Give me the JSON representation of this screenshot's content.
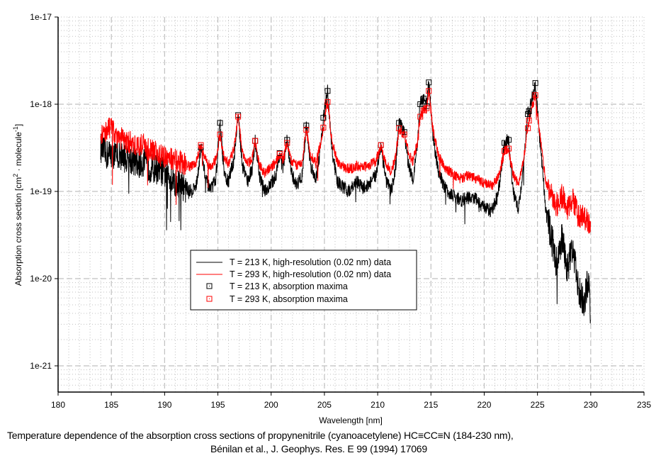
{
  "chart_data": {
    "type": "line",
    "title": "",
    "xlabel": "Wavelength [nm]",
    "ylabel": "Absorption cross section [cm² · molecule⁻¹]",
    "ylabel_parts": {
      "main": "Absorption cross section [cm",
      "sup1": "2",
      "mid": " · molecule",
      "sup2": "-1",
      "end": "]"
    },
    "xlim": [
      180,
      235
    ],
    "ylim": [
      5e-22,
      1e-17
    ],
    "yscale": "log",
    "x_ticks": [
      "180",
      "185",
      "190",
      "195",
      "200",
      "205",
      "210",
      "215",
      "220",
      "225",
      "230",
      "235"
    ],
    "x_tick_values": [
      180,
      185,
      190,
      195,
      200,
      205,
      210,
      215,
      220,
      225,
      230,
      235
    ],
    "y_ticks": [
      "1e-17",
      "1e-18",
      "1e-19",
      "1e-20",
      "1e-21"
    ],
    "y_tick_values": [
      1e-17,
      1e-18,
      1e-19,
      1e-20,
      1e-21
    ],
    "grid": true,
    "legend_position": "center-left",
    "legend": [
      {
        "label": "T = 213 K, high-resolution (0.02 nm) data",
        "kind": "line",
        "color": "#000000"
      },
      {
        "label": "T = 293 K, high-resolution (0.02 nm) data",
        "kind": "line",
        "color": "#ff0000"
      },
      {
        "label": "T = 213 K, absorption maxima",
        "kind": "marker",
        "color": "#000000"
      },
      {
        "label": "T = 293 K, absorption maxima",
        "kind": "marker",
        "color": "#ff0000"
      }
    ],
    "series": [
      {
        "name": "T = 213 K, high-resolution (0.02 nm) data",
        "kind": "line",
        "color": "#000000",
        "range_nm": [
          184,
          230
        ],
        "envelope": {
          "x": [
            184.0,
            184.5,
            185.0,
            185.5,
            186.0,
            186.5,
            187.0,
            187.5,
            188.0,
            188.5,
            189.0,
            189.5,
            190.0,
            190.5,
            191.0,
            191.5,
            192.0,
            192.5,
            193.0,
            193.4,
            193.8,
            194.3,
            194.8,
            195.2,
            195.6,
            196.0,
            196.5,
            196.9,
            197.3,
            197.8,
            198.2,
            198.5,
            198.9,
            199.4,
            200.0,
            200.5,
            200.8,
            201.1,
            201.5,
            201.9,
            202.4,
            202.9,
            203.3,
            203.7,
            204.2,
            204.6,
            204.9,
            205.3,
            205.7,
            206.2,
            206.8,
            207.4,
            208.0,
            208.6,
            209.2,
            209.8,
            210.3,
            210.8,
            211.3,
            211.7,
            212.0,
            212.5,
            212.9,
            213.3,
            213.7,
            214.0,
            214.3,
            214.6,
            214.8,
            215.2,
            215.7,
            216.3,
            217.0,
            217.8,
            218.5,
            219.3,
            220.0,
            220.7,
            221.3,
            221.9,
            222.3,
            222.7,
            223.2,
            223.6,
            224.1,
            224.2,
            224.8,
            225.3,
            225.8,
            226.3,
            226.8,
            227.3,
            227.8,
            228.3,
            228.8,
            229.3,
            229.8,
            230.0
          ],
          "y": [
            3.2e-19,
            2.6e-19,
            2.8e-19,
            2.5e-19,
            2.6e-19,
            2.3e-19,
            2.3e-19,
            2e-19,
            2.2e-19,
            1.9e-19,
            1.8e-19,
            1.8e-19,
            1.6e-19,
            1.5e-19,
            1.3e-19,
            1.2e-19,
            1.1e-19,
            1e-19,
            1.2e-19,
            3.2e-19,
            1.5e-19,
            1e-19,
            1.4e-19,
            6.1e-19,
            1.5e-19,
            1.3e-19,
            2.3e-19,
            7.5e-19,
            2e-19,
            1.3e-19,
            1.8e-19,
            3.8e-19,
            1.5e-19,
            1e-19,
            1.2e-19,
            1.6e-19,
            2.75e-19,
            1.8e-19,
            3.9e-19,
            1.6e-19,
            1.2e-19,
            1.5e-19,
            5.7e-19,
            2e-19,
            1.4e-19,
            3e-19,
            7e-19,
            1.42e-18,
            3e-19,
            1.3e-19,
            1.1e-19,
            1e-19,
            1.3e-19,
            1.1e-19,
            1.2e-19,
            1.5e-19,
            3.4e-19,
            1.3e-19,
            1e-19,
            2e-19,
            6.1e-19,
            4.8e-19,
            2e-19,
            1.4e-19,
            3e-19,
            1e-18,
            1.16e-18,
            9.5e-19,
            1.78e-18,
            4e-19,
            1.7e-19,
            1.1e-19,
            9e-20,
            8e-20,
            8.5e-20,
            8e-20,
            6.5e-20,
            6e-20,
            9e-20,
            3.6e-19,
            3.9e-19,
            1e-19,
            6.5e-20,
            1.5e-19,
            7.7e-19,
            8.3e-19,
            1.75e-18,
            3e-19,
            6e-20,
            3e-20,
            1.5e-20,
            3e-20,
            1.2e-20,
            2.5e-20,
            8e-21,
            5e-21,
            1e-20,
            3e-21
          ]
        }
      },
      {
        "name": "T = 293 K, high-resolution (0.02 nm) data",
        "kind": "line",
        "color": "#ff0000",
        "range_nm": [
          184,
          230
        ],
        "envelope": {
          "x": [
            184.0,
            184.5,
            185.0,
            185.5,
            186.0,
            186.5,
            187.0,
            187.5,
            188.0,
            188.5,
            189.0,
            189.5,
            190.0,
            190.5,
            191.0,
            191.5,
            192.0,
            192.5,
            193.0,
            193.4,
            193.8,
            194.3,
            194.8,
            195.2,
            195.6,
            196.0,
            196.5,
            196.9,
            197.3,
            197.8,
            198.2,
            198.5,
            198.9,
            199.4,
            200.0,
            200.5,
            200.8,
            201.1,
            201.5,
            201.9,
            202.4,
            202.9,
            203.3,
            203.7,
            204.2,
            204.6,
            204.9,
            205.3,
            205.7,
            206.2,
            206.8,
            207.4,
            208.0,
            208.6,
            209.2,
            209.8,
            210.3,
            210.8,
            211.3,
            211.7,
            212.0,
            212.5,
            212.9,
            213.3,
            213.7,
            214.0,
            214.3,
            214.6,
            214.8,
            215.2,
            215.7,
            216.3,
            217.0,
            217.8,
            218.5,
            219.3,
            220.0,
            220.7,
            221.3,
            221.9,
            222.3,
            222.7,
            223.2,
            223.6,
            224.1,
            224.2,
            224.8,
            225.3,
            225.8,
            226.3,
            226.8,
            227.3,
            227.8,
            228.3,
            228.8,
            229.3,
            229.8,
            230.0
          ],
          "y": [
            4.5e-19,
            5e-19,
            5.5e-19,
            4.2e-19,
            4e-19,
            3.6e-19,
            3.7e-19,
            3.2e-19,
            3.5e-19,
            3e-19,
            2.9e-19,
            2.6e-19,
            2.5e-19,
            2.4e-19,
            2.3e-19,
            2.2e-19,
            2e-19,
            1.9e-19,
            2.2e-19,
            3.4e-19,
            2.3e-19,
            1.9e-19,
            2.3e-19,
            4.5e-19,
            2.4e-19,
            2.1e-19,
            3e-19,
            7.2e-19,
            2.8e-19,
            2.1e-19,
            2.4e-19,
            3.8e-19,
            2e-19,
            1.6e-19,
            1.9e-19,
            2.2e-19,
            2.7e-19,
            2.3e-19,
            3.6e-19,
            2.2e-19,
            2e-19,
            2.2e-19,
            5.1e-19,
            2.6e-19,
            2.1e-19,
            3.4e-19,
            5.4e-19,
            1.06e-18,
            3.8e-19,
            2.2e-19,
            1.9e-19,
            1.8e-19,
            2e-19,
            1.9e-19,
            2e-19,
            2.2e-19,
            3.4e-19,
            2e-19,
            1.7e-19,
            2.6e-19,
            5.3e-19,
            4.5e-19,
            2.8e-19,
            2.2e-19,
            3.5e-19,
            7.2e-19,
            8.5e-19,
            9e-19,
            1.42e-18,
            5e-19,
            2.6e-19,
            1.9e-19,
            1.6e-19,
            1.4e-19,
            1.5e-19,
            1.4e-19,
            1.25e-19,
            1.15e-19,
            1.4e-19,
            2.9e-19,
            3.1e-19,
            1.6e-19,
            1.2e-19,
            2e-19,
            5.3e-19,
            6.5e-19,
            1.27e-18,
            3.8e-19,
            1.2e-19,
            9e-20,
            7e-20,
            9e-20,
            6.5e-20,
            8e-20,
            5.5e-20,
            5e-20,
            4.5e-20,
            4.2e-20
          ]
        }
      },
      {
        "name": "T = 213 K, absorption maxima",
        "kind": "marker",
        "color": "#000000",
        "x": [
          193.4,
          195.2,
          196.9,
          198.5,
          200.8,
          201.5,
          203.3,
          204.9,
          205.3,
          210.3,
          212.0,
          212.5,
          214.0,
          214.3,
          214.6,
          214.8,
          221.9,
          222.3,
          224.1,
          224.2,
          224.8
        ],
        "y": [
          3.2e-19,
          6.1e-19,
          7.5e-19,
          3.8e-19,
          2.75e-19,
          3.9e-19,
          5.7e-19,
          7e-19,
          1.42e-18,
          3.4e-19,
          6.1e-19,
          4.8e-19,
          1e-18,
          1.16e-18,
          9.5e-19,
          1.78e-18,
          3.6e-19,
          3.9e-19,
          7.7e-19,
          8.3e-19,
          1.75e-18
        ]
      },
      {
        "name": "T = 293 K, absorption maxima",
        "kind": "marker",
        "color": "#ff0000",
        "x": [
          193.4,
          195.2,
          196.9,
          198.5,
          200.8,
          201.5,
          203.3,
          204.9,
          205.3,
          210.3,
          212.0,
          212.5,
          214.0,
          214.3,
          214.6,
          214.8,
          221.9,
          222.3,
          224.1,
          224.2,
          224.8
        ],
        "y": [
          3.4e-19,
          4.5e-19,
          7.2e-19,
          3.8e-19,
          2.7e-19,
          3.6e-19,
          5.1e-19,
          5.4e-19,
          1.06e-18,
          3.4e-19,
          5.3e-19,
          4.5e-19,
          7.2e-19,
          8.5e-19,
          9e-19,
          1.42e-18,
          2.9e-19,
          3.1e-19,
          5.3e-19,
          6.5e-19,
          1.27e-18
        ]
      }
    ]
  },
  "caption": {
    "line1": "Temperature dependence of the absorption cross sections of propynenitrile (cyanoacetylene) HC≡CC≡N (184-230 nm),",
    "line2": "Bénilan et al., J. Geophys. Res. E 99 (1994) 17069"
  },
  "colors": {
    "grid": "#c0c0c0",
    "series_213": "#000000",
    "series_293": "#ff0000"
  }
}
